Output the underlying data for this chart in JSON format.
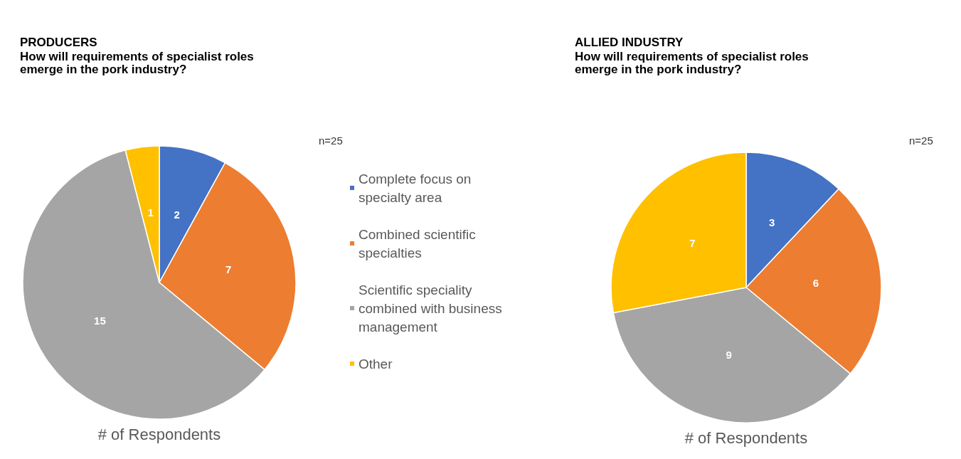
{
  "chart_data": [
    {
      "type": "pie",
      "title": "PRODUCERS",
      "subtitle": "How will requirements of specialist roles emerge in the pork industry?",
      "xlabel": "# of Respondents",
      "annotations": [
        "n=25"
      ],
      "categories": [
        "Complete focus on specialty area",
        "Combined scientific specialties",
        "Scientific speciality combined with business management",
        "Other"
      ],
      "values": [
        2,
        7,
        15,
        1
      ],
      "colors": [
        "#4472c4",
        "#ed7d31",
        "#a5a5a5",
        "#ffc000"
      ],
      "data_labels": true,
      "legend": "right"
    },
    {
      "type": "pie",
      "title": "ALLIED INDUSTRY",
      "subtitle": "How will requirements of specialist roles emerge in the pork industry?",
      "xlabel": "# of Respondents",
      "annotations": [
        "n=25"
      ],
      "categories": [
        null,
        null,
        null,
        null
      ],
      "values": [
        3,
        6,
        9,
        7
      ],
      "colors": [
        "#4472c4",
        "#ed7d31",
        "#a5a5a5",
        "#ffc000"
      ],
      "data_labels": true,
      "legend": false
    }
  ]
}
